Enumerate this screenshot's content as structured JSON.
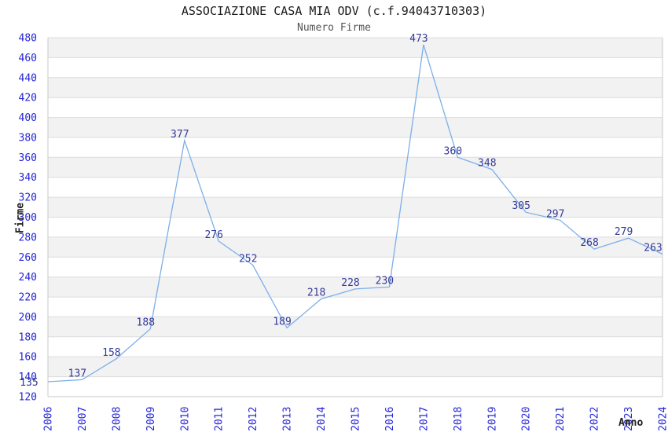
{
  "header": {
    "title": "ASSOCIAZIONE CASA MIA ODV (c.f.94043710303)",
    "subtitle": "Numero Firme"
  },
  "chart_data": {
    "type": "line",
    "title": "ASSOCIAZIONE CASA MIA ODV (c.f.94043710303)",
    "subtitle": "Numero Firme",
    "xlabel": "Anno",
    "ylabel": "Firme",
    "x": [
      2006,
      2007,
      2008,
      2009,
      2010,
      2011,
      2012,
      2013,
      2014,
      2015,
      2016,
      2017,
      2018,
      2019,
      2020,
      2021,
      2022,
      2023,
      2024
    ],
    "series": [
      {
        "name": "Numero Firme",
        "values": [
          135,
          137,
          158,
          188,
          377,
          276,
          252,
          189,
          218,
          228,
          230,
          473,
          360,
          348,
          305,
          297,
          268,
          279,
          263
        ]
      }
    ],
    "ylim": [
      120,
      480
    ],
    "ytick_step": 20,
    "grid": "horizontal gridlines with alternating shaded bands",
    "legend": "none",
    "markers": "none",
    "colors": {
      "line": "#7cafe9",
      "data_label": "#333a99",
      "tick_label": "#2424d6",
      "band": "#f2f2f2",
      "gridline": "#dcdcdc",
      "plot_border": "#c9c9c9",
      "title": "#1a1a1a",
      "subtitle": "#555555",
      "axis_title": "#222222"
    }
  }
}
